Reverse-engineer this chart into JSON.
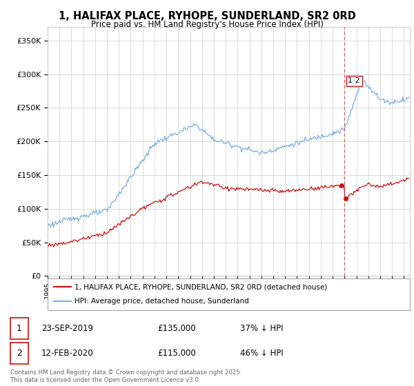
{
  "title": "1, HALIFAX PLACE, RYHOPE, SUNDERLAND, SR2 0RD",
  "subtitle": "Price paid vs. HM Land Registry's House Price Index (HPI)",
  "hpi_color": "#7aadde",
  "price_color": "#cc1111",
  "dashed_line_color": "#dd3333",
  "legend_hpi_label": "HPI: Average price, detached house, Sunderland",
  "legend_price_label": "1, HALIFAX PLACE, RYHOPE, SUNDERLAND, SR2 0RD (detached house)",
  "transaction1_date": "23-SEP-2019",
  "transaction1_price": "£135,000",
  "transaction1_hpi": "37% ↓ HPI",
  "transaction1_year": 2019.73,
  "transaction1_value": 135000,
  "transaction2_date": "12-FEB-2020",
  "transaction2_price": "£115,000",
  "transaction2_hpi": "46% ↓ HPI",
  "transaction2_year": 2020.12,
  "transaction2_value": 115000,
  "footnote": "Contains HM Land Registry data © Crown copyright and database right 2025.\nThis data is licensed under the Open Government Licence v3.0.",
  "background_color": "#ffffff",
  "grid_color": "#cccccc",
  "yticks": [
    0,
    50000,
    100000,
    150000,
    200000,
    250000,
    300000,
    350000
  ],
  "ytick_labels": [
    "£0",
    "£50K",
    "£100K",
    "£150K",
    "£200K",
    "£250K",
    "£300K",
    "£350K"
  ],
  "ylim": [
    0,
    370000
  ],
  "xlim_start": 1995.0,
  "xlim_end": 2025.5
}
